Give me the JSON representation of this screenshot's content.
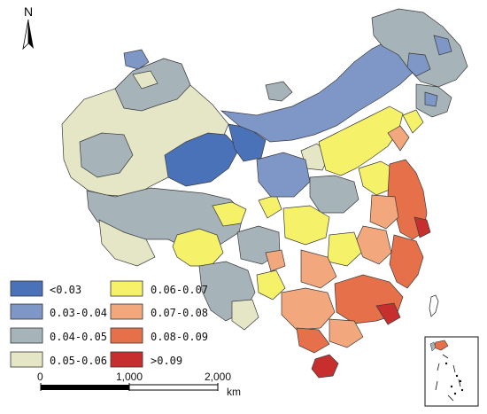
{
  "north": {
    "label": "N",
    "icon": "north-arrow-icon"
  },
  "legend": {
    "classes": [
      {
        "label": "<0.03",
        "color": "#4a72b8"
      },
      {
        "label": "0.03-0.04",
        "color": "#7e97c7"
      },
      {
        "label": "0.04-0.05",
        "color": "#a6b3b8"
      },
      {
        "label": "0.05-0.06",
        "color": "#e5e6c5"
      },
      {
        "label": "0.06-0.07",
        "color": "#f5f168"
      },
      {
        "label": "0.07-0.08",
        "color": "#f2a77c"
      },
      {
        "label": "0.08-0.09",
        "color": "#e6704a"
      },
      {
        "label": ">0.09",
        "color": "#c72f2f"
      }
    ]
  },
  "scale_bar": {
    "ticks": [
      "0",
      "1,000",
      "2,000"
    ],
    "unit": "km"
  },
  "inset": {
    "name": "south-china-sea-inset"
  },
  "colors": {
    "boundary": "#3a3a3a",
    "background": "#ffffff"
  }
}
